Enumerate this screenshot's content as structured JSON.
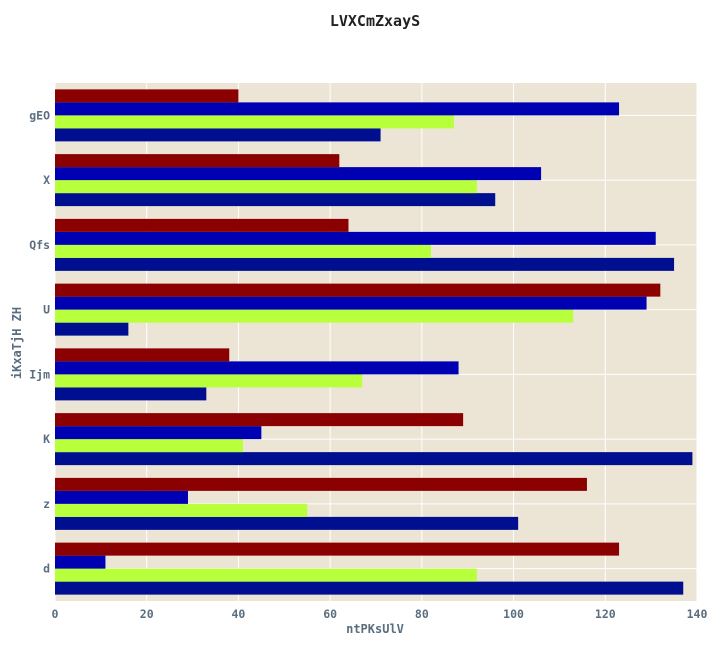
{
  "colors": {
    "plot_background": "#ece5d6",
    "grid": "#ffffff",
    "series_colors": [
      "#000f8f",
      "#b8ff3c",
      "#0000b3",
      "#8b0000"
    ]
  },
  "chart_data": {
    "type": "bar",
    "orientation": "horizontal",
    "title": "LVXCmZxayS",
    "xlabel": "ntPKsUlV",
    "ylabel": "iKxaTjH ZH",
    "xlim": [
      0,
      140
    ],
    "x_ticks": [
      0,
      20,
      40,
      60,
      80,
      100,
      120,
      140
    ],
    "grid": true,
    "legend": "none",
    "categories": [
      "d",
      "z",
      "K",
      "Ijm",
      "U",
      "Qfs",
      "X",
      "gEO"
    ],
    "series": [
      {
        "values": [
          137,
          101,
          139,
          33,
          16,
          135,
          96,
          71
        ]
      },
      {
        "values": [
          92,
          55,
          41,
          67,
          113,
          82,
          92,
          87
        ]
      },
      {
        "values": [
          11,
          29,
          45,
          88,
          129,
          131,
          106,
          123
        ]
      },
      {
        "values": [
          123,
          116,
          89,
          38,
          132,
          64,
          62,
          40
        ]
      }
    ]
  }
}
